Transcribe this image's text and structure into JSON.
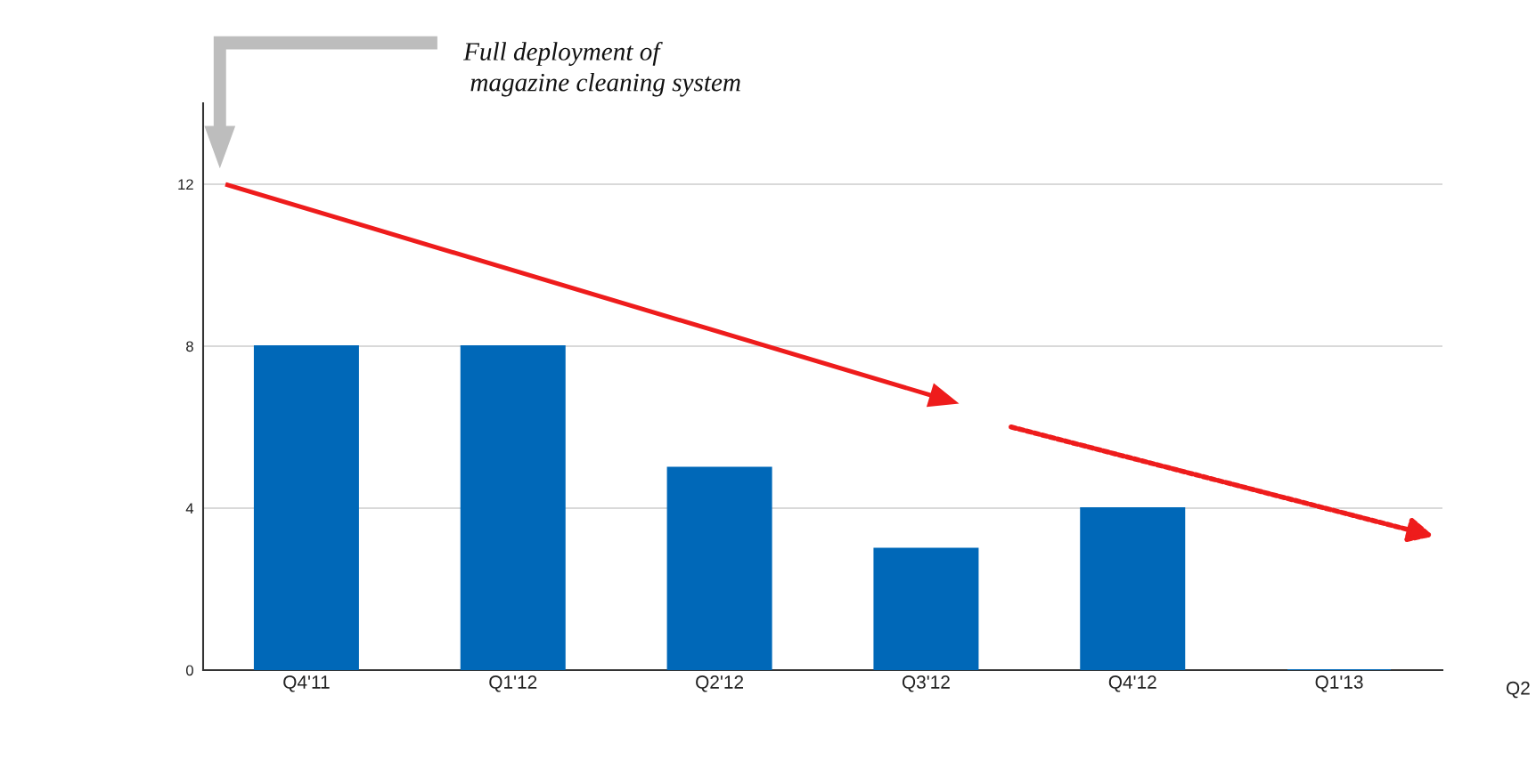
{
  "chart_data": {
    "type": "bar",
    "categories": [
      "Q4'11",
      "Q1'12",
      "Q2'12",
      "Q3'12",
      "Q4'12",
      "Q1'13"
    ],
    "values": [
      8,
      8,
      5,
      3,
      4,
      0
    ],
    "color": "#0068b8",
    "ylim": [
      0,
      14
    ],
    "yticks": [
      0,
      4,
      8,
      12
    ],
    "grid": "y",
    "annotations": [
      "Full deployment of\n magazine cleaning system",
      "Q2"
    ]
  }
}
